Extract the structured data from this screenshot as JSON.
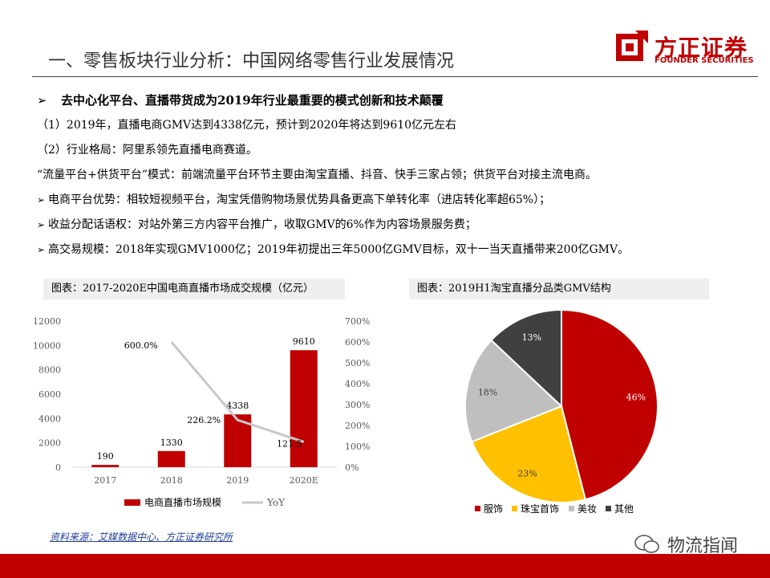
{
  "header": {
    "title": "一、零售板块行业分析：中国网络零售行业发展情况",
    "logo_cn": "方正证券",
    "logo_en": "FOUNDER SECURITIES"
  },
  "bullets": {
    "headline": "去中心化平台、直播带货成为2019年行业最重要的模式创新和技术颠覆",
    "l1": "（1）2019年，直播电商GMV达到4338亿元，预计到2020年将达到9610亿元左右",
    "l2": "（2）行业格局：阿里系领先直播电商赛道。",
    "l3": "“流量平台+供货平台”模式：前端流量平台环节主要由淘宝直播、抖音、快手三家占领；供货平台对接主流电商。",
    "l4": "电商平台优势：相较短视频平台，淘宝凭借购物场景优势具备更高下单转化率（进店转化率超65%）；",
    "l5": "收益分配话语权：对站外第三方内容平台推广，收取GMV的6%作为内容场景服务费；",
    "l6": "高交易规模：2018年实现GMV1000亿；2019年初提出三年5000亿GMV目标，双十一当天直播带来200亿GMV。"
  },
  "chart_data": [
    {
      "type": "bar",
      "title": "图表：2017-2020E中国电商直播市场成交规模（亿元）",
      "categories": [
        "2017",
        "2018",
        "2019",
        "2020E"
      ],
      "series": [
        {
          "name": "电商直播市场规模",
          "type": "bar",
          "axis": "left",
          "values": [
            190,
            1330,
            4338,
            9610
          ],
          "color": "#c00000"
        },
        {
          "name": "YoY",
          "type": "line",
          "axis": "right",
          "values": [
            null,
            600.0,
            226.2,
            121.5
          ],
          "labels": [
            "",
            "600.0%",
            "226.2%",
            "121.5"
          ],
          "color": "#c8c8c8"
        }
      ],
      "ylim": [
        0,
        12000
      ],
      "yticks": [
        "0",
        "2000",
        "4000",
        "6000",
        "8000",
        "10000",
        "12000"
      ],
      "y2lim": [
        0,
        700
      ],
      "y2ticks": [
        "0%",
        "100%",
        "200%",
        "300%",
        "400%",
        "500%",
        "600%",
        "700%"
      ],
      "legend": "bottom"
    },
    {
      "type": "pie",
      "title": "图表：2019H1淘宝直播分品类GMV结构",
      "slices": [
        {
          "name": "服饰",
          "value": 46,
          "label": "46%",
          "color": "#c00000"
        },
        {
          "name": "珠宝首饰",
          "value": 23,
          "label": "23%",
          "color": "#ffc000"
        },
        {
          "name": "美妆",
          "value": 18,
          "label": "18%",
          "color": "#bfbfbf"
        },
        {
          "name": "其他",
          "value": 13,
          "label": "13%",
          "color": "#404040"
        }
      ],
      "legend": "bottom"
    }
  ],
  "footer": {
    "source": "资料来源：艾媒数据中心、方正证券研究所",
    "watermark": "物流指闻"
  }
}
